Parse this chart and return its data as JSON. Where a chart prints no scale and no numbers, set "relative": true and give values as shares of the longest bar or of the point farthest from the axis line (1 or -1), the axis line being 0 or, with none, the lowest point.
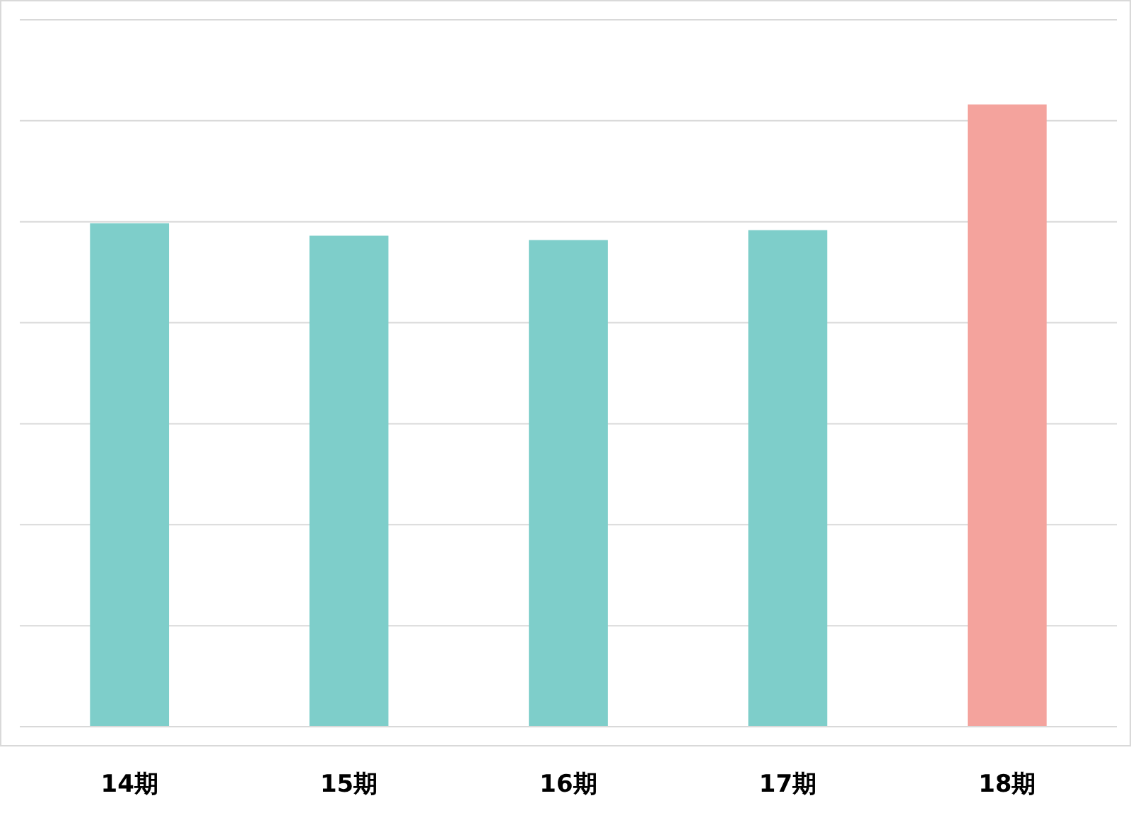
{
  "chart_data": {
    "type": "bar",
    "relative": true,
    "categories": [
      "14期",
      "15期",
      "16期",
      "17期",
      "18期"
    ],
    "values": [
      0.809,
      0.789,
      0.782,
      0.798,
      1
    ],
    "colors": [
      "#7ececa",
      "#7ececa",
      "#7ececa",
      "#7ececa",
      "#f4a39d"
    ],
    "grid": true
  }
}
